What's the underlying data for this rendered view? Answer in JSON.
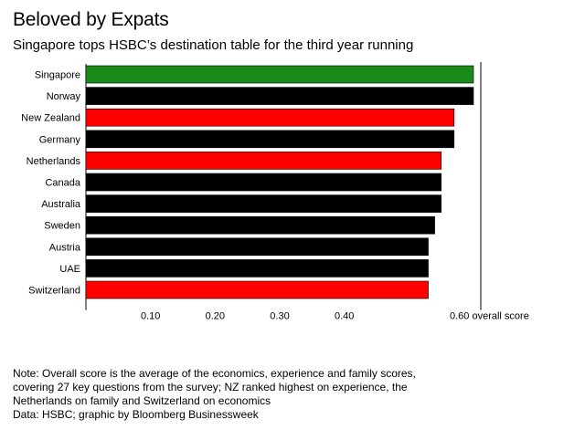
{
  "header": {
    "title": "Beloved by Expats",
    "subtitle": "Singapore tops HSBC’s destination table for the third year running"
  },
  "chart_data": {
    "type": "bar",
    "orientation": "horizontal",
    "title": "Beloved by Expats",
    "subtitle": "Singapore tops HSBC’s destination table for the third year running",
    "xlabel": "overall score",
    "ylabel": "",
    "xlim": [
      0,
      0.6
    ],
    "xticks": [
      0.1,
      0.2,
      0.3,
      0.4,
      0.6
    ],
    "xtick_labels": [
      "0.10",
      "0.20",
      "0.30",
      "0.40",
      "0.60 overall score"
    ],
    "grid": false,
    "legend": "none",
    "categories": [
      "Singapore",
      "Norway",
      "New Zealand",
      "Germany",
      "Netherlands",
      "Canada",
      "Australia",
      "Sweden",
      "Austria",
      "UAE",
      "Switzerland"
    ],
    "values": [
      0.6,
      0.6,
      0.57,
      0.57,
      0.55,
      0.55,
      0.55,
      0.54,
      0.53,
      0.53,
      0.53
    ],
    "bar_colors": [
      "#1a8a1a",
      "#000000",
      "#ff0000",
      "#000000",
      "#ff0000",
      "#000000",
      "#000000",
      "#000000",
      "#000000",
      "#000000",
      "#ff0000"
    ],
    "colors": {
      "top": "#1a8a1a",
      "highlight": "#ff0000",
      "default": "#000000"
    }
  },
  "footer": {
    "note_lines": [
      "Note: Overall score is the average of the economics, experience and family scores,",
      "covering 27 key questions from the survey; NZ ranked highest on experience, the",
      "Netherlands on family and Switzerland on economics"
    ],
    "source": "Data: HSBC; graphic by Bloomberg Businessweek"
  }
}
